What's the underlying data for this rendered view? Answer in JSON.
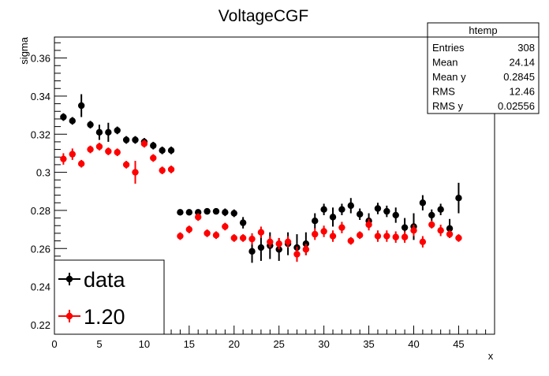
{
  "chart_data": {
    "type": "scatter",
    "title": "VoltageCGF",
    "xlabel": "x",
    "ylabel": "sigma",
    "xlim": [
      0,
      49
    ],
    "ylim": [
      0.215,
      0.371
    ],
    "x_ticks": [
      0,
      5,
      10,
      15,
      20,
      25,
      30,
      35,
      40,
      45
    ],
    "x_tick_labels": [
      "0",
      "5",
      "10",
      "15",
      "20",
      "25",
      "30",
      "35",
      "40",
      "45"
    ],
    "y_ticks": [
      0.22,
      0.24,
      0.26,
      0.28,
      0.3,
      0.32,
      0.34,
      0.36
    ],
    "y_tick_labels": [
      "0.22",
      "0.24",
      "0.26",
      "0.28",
      "0.3",
      "0.32",
      "0.34",
      "0.36"
    ],
    "stats_box": {
      "title": "htemp",
      "rows": [
        {
          "label": "Entries",
          "value": "308"
        },
        {
          "label": "Mean",
          "value": "24.14"
        },
        {
          "label": "Mean y",
          "value": "0.2845"
        },
        {
          "label": "RMS",
          "value": "12.46"
        },
        {
          "label": "RMS y",
          "value": "0.02556"
        }
      ]
    },
    "legend": {
      "placement": "bottom-left",
      "entries": [
        {
          "label": "data",
          "color": "#000000"
        },
        {
          "label": "1.20",
          "color": "#ff0000"
        }
      ]
    },
    "series": [
      {
        "name": "data",
        "color": "#000000",
        "x": [
          1,
          2,
          3,
          4,
          5,
          6,
          7,
          8,
          9,
          10,
          11,
          12,
          13,
          14,
          15,
          16,
          17,
          18,
          19,
          20,
          21,
          22,
          23,
          24,
          25,
          26,
          27,
          28,
          29,
          30,
          31,
          32,
          33,
          34,
          35,
          36,
          37,
          38,
          39,
          40,
          41,
          42,
          43,
          44,
          45
        ],
        "y": [
          0.329,
          0.327,
          0.335,
          0.325,
          0.321,
          0.321,
          0.322,
          0.317,
          0.317,
          0.316,
          0.314,
          0.3115,
          0.3115,
          0.279,
          0.279,
          0.279,
          0.2795,
          0.2795,
          0.279,
          0.2785,
          0.2735,
          0.2585,
          0.2605,
          0.2615,
          0.2595,
          0.2625,
          0.2605,
          0.2625,
          0.2745,
          0.2805,
          0.2765,
          0.2805,
          0.2825,
          0.278,
          0.2745,
          0.281,
          0.2795,
          0.2775,
          0.271,
          0.2715,
          0.284,
          0.2775,
          0.2805,
          0.2705,
          0.2865
        ],
        "err": [
          0.002,
          0.002,
          0.006,
          0.002,
          0.004,
          0.005,
          0.002,
          0.002,
          0.002,
          0.002,
          0.002,
          0.002,
          0.002,
          0.0015,
          0.0015,
          0.0015,
          0.0015,
          0.0015,
          0.002,
          0.002,
          0.003,
          0.006,
          0.007,
          0.007,
          0.006,
          0.006,
          0.007,
          0.006,
          0.004,
          0.003,
          0.005,
          0.003,
          0.004,
          0.003,
          0.004,
          0.003,
          0.003,
          0.004,
          0.005,
          0.007,
          0.004,
          0.003,
          0.003,
          0.005,
          0.008
        ]
      },
      {
        "name": "1.20",
        "color": "#ff0000",
        "x": [
          1,
          2,
          3,
          4,
          5,
          6,
          7,
          8,
          9,
          10,
          11,
          12,
          13,
          14,
          15,
          16,
          17,
          18,
          19,
          20,
          21,
          22,
          23,
          24,
          25,
          26,
          27,
          28,
          29,
          30,
          31,
          32,
          33,
          34,
          35,
          36,
          37,
          38,
          39,
          40,
          41,
          42,
          43,
          44,
          45
        ],
        "y": [
          0.307,
          0.3095,
          0.3045,
          0.312,
          0.3135,
          0.311,
          0.3105,
          0.304,
          0.3,
          0.315,
          0.3075,
          0.301,
          0.3015,
          0.2665,
          0.27,
          0.2765,
          0.268,
          0.267,
          0.2715,
          0.2655,
          0.2655,
          0.265,
          0.2685,
          0.2635,
          0.2625,
          0.2635,
          0.257,
          0.2595,
          0.2675,
          0.269,
          0.2665,
          0.271,
          0.264,
          0.267,
          0.2725,
          0.2665,
          0.2665,
          0.266,
          0.266,
          0.2695,
          0.2635,
          0.2725,
          0.2695,
          0.2675,
          0.2655
        ],
        "err": [
          0.003,
          0.003,
          0.002,
          0.002,
          0.002,
          0.002,
          0.002,
          0.002,
          0.006,
          0.002,
          0.002,
          0.002,
          0.002,
          0.002,
          0.002,
          0.002,
          0.002,
          0.002,
          0.002,
          0.002,
          0.002,
          0.003,
          0.003,
          0.003,
          0.003,
          0.003,
          0.004,
          0.003,
          0.003,
          0.003,
          0.003,
          0.003,
          0.002,
          0.002,
          0.003,
          0.003,
          0.003,
          0.003,
          0.003,
          0.003,
          0.003,
          0.002,
          0.003,
          0.002,
          0.002
        ]
      }
    ]
  }
}
